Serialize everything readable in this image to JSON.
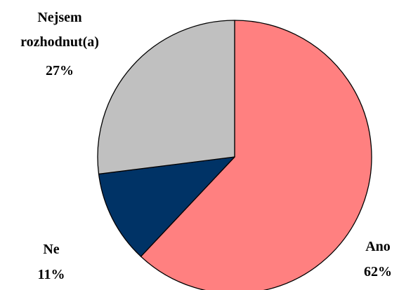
{
  "chart_data": {
    "type": "pie",
    "title": "",
    "slices": [
      {
        "label": "Ano",
        "value": 62,
        "value_text": "62%",
        "color": "#ff8080"
      },
      {
        "label": "Ne",
        "value": 11,
        "value_text": "11%",
        "color": "#003366"
      },
      {
        "label": "Nejsem rozhodnut(a)",
        "value": 27,
        "value_text": "27%",
        "color": "#c0c0c0"
      }
    ],
    "start_angle": "12 o'clock",
    "direction": "clockwise",
    "legend": "none"
  },
  "labels": {
    "ano": {
      "name": "Ano",
      "pct": "62%"
    },
    "ne": {
      "name": "Ne",
      "pct": "11%"
    },
    "nejsem": {
      "line1": "Nejsem",
      "line2": "rozhodnut(a)",
      "pct": "27%"
    }
  }
}
